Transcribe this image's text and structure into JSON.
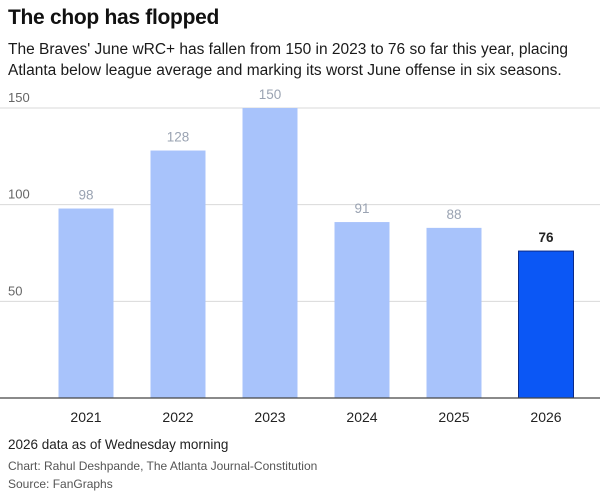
{
  "header": {
    "title": "The chop has flopped",
    "subtitle": "The Braves' June wRC+ has fallen from 150 in 2023 to 76 so far this year, placing Atlanta below league average and marking its worst June offense in six seasons."
  },
  "footer": {
    "note": "2026 data as of Wednesday morning",
    "credit": "Chart: Rahul Deshpande, The Atlanta Journal-Constitution",
    "source": "Source: FanGraphs"
  },
  "colors": {
    "bar": "#a8c3fb",
    "highlight": "#0b57f5",
    "highlight_stroke": "#0a2a8a",
    "grid": "#d9d9d9",
    "axis": "#444444"
  },
  "chart_data": {
    "type": "bar",
    "title": "The chop has flopped",
    "xlabel": "",
    "ylabel": "",
    "categories": [
      "2021",
      "2022",
      "2023",
      "2024",
      "2025",
      "2026"
    ],
    "values": [
      98,
      128,
      150,
      91,
      88,
      76
    ],
    "highlight_index": 5,
    "ylim": [
      0,
      150
    ],
    "yticks": [
      50,
      100,
      150
    ],
    "grid": true,
    "legend": "none"
  }
}
